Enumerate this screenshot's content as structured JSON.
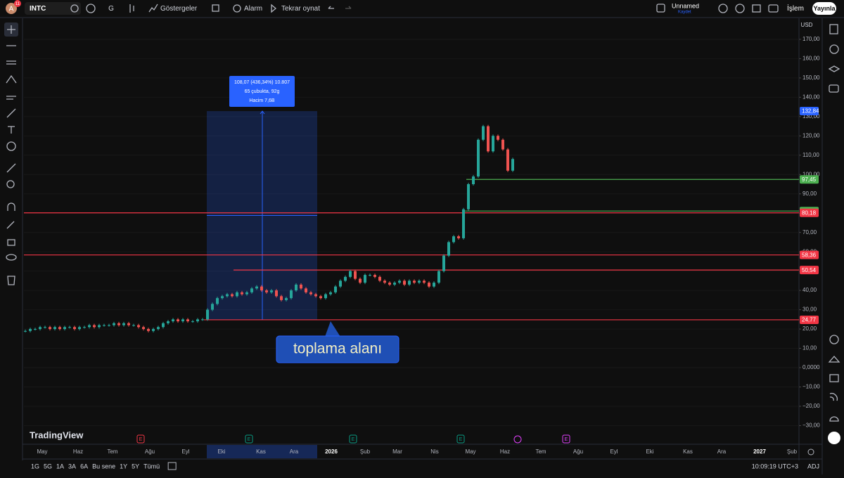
{
  "toolbar": {
    "avatar": "A",
    "notifications": "11",
    "symbol": "INTC",
    "interval": "G",
    "indicators": "Göstergeler",
    "alert": "Alarm",
    "replay": "Tekrar oynat",
    "layout_name": "Unnamed",
    "save_status": "Kaydet",
    "trade": "İşlem",
    "publish": "Yayınla"
  },
  "chart_data": {
    "type": "candlestick",
    "currency": "USD",
    "watermark": "TradingView",
    "ylim": [
      -35.3,
      180.9
    ],
    "yticks": [
      {
        "value": 170,
        "label": "170,00"
      },
      {
        "value": 160,
        "label": "160,00"
      },
      {
        "value": 150,
        "label": "150,00"
      },
      {
        "value": 140,
        "label": "140,00"
      },
      {
        "value": 130,
        "label": "130,00"
      },
      {
        "value": 120,
        "label": "120,00"
      },
      {
        "value": 110,
        "label": "110,00"
      },
      {
        "value": 100,
        "label": "100,00"
      },
      {
        "value": 90,
        "label": "90,00"
      },
      {
        "value": 80,
        "label": "80,00"
      },
      {
        "value": 70,
        "label": "70,00"
      },
      {
        "value": 60,
        "label": "60,00"
      },
      {
        "value": 50,
        "label": "50,00"
      },
      {
        "value": 40,
        "label": "40,00"
      },
      {
        "value": 30,
        "label": "30,00"
      },
      {
        "value": 20,
        "label": "20,00"
      },
      {
        "value": 10,
        "label": "10,00"
      },
      {
        "value": 0,
        "label": "0,0000"
      },
      {
        "value": -10,
        "label": "−10,00"
      },
      {
        "value": -20,
        "label": "−20,00"
      },
      {
        "value": -30,
        "label": "−30,00"
      }
    ],
    "grid": true,
    "up_color": "#26a69a",
    "down_color": "#ef5350",
    "series": [
      {
        "values": [
          19,
          20,
          20,
          21,
          21,
          20,
          21,
          20,
          21,
          21,
          20,
          21,
          21,
          22,
          21,
          22,
          22,
          22,
          23,
          22,
          23,
          22,
          22,
          21,
          20,
          19,
          20,
          21,
          23,
          24,
          25,
          24,
          25,
          24,
          24,
          25,
          25,
          30,
          33,
          36,
          37,
          38,
          37,
          39,
          38,
          39,
          41,
          42,
          40,
          39,
          40,
          37,
          35,
          36,
          40,
          43,
          41,
          39,
          38,
          37,
          36,
          38,
          39,
          42,
          45,
          47,
          50,
          46,
          44,
          48,
          48,
          47,
          45,
          44,
          43,
          44,
          45,
          43,
          45,
          44,
          45,
          44,
          42,
          44,
          50,
          58,
          65,
          68,
          67,
          82,
          95,
          99,
          118,
          125,
          112,
          120,
          118,
          113,
          102,
          108
        ]
      }
    ],
    "price_lines": [
      {
        "value": 132.84,
        "label": "132,84",
        "color": "#2962ff"
      },
      {
        "value": 97.45,
        "label": "97,45",
        "color": "#4caf50"
      },
      {
        "value": 81.1,
        "label": "81,10",
        "color": "#4caf50"
      },
      {
        "value": 80.18,
        "label": "80,18",
        "color": "#f23645"
      },
      {
        "value": 58.36,
        "label": "58,36",
        "color": "#f23645"
      },
      {
        "value": 50.54,
        "label": "50,54",
        "color": "#f23645"
      },
      {
        "value": 24.77,
        "label": "24,77",
        "color": "#f23645"
      }
    ],
    "measure": {
      "from": 24.77,
      "to": 132.84,
      "tooltip": [
        "108,07 (436,34%) 10.807",
        "65 çubukta, 92g",
        "Hacim 7,6B"
      ]
    },
    "annotation": "toplama alanı",
    "x_labels": [
      "May",
      "Haz",
      "Tem",
      "Ağu",
      "Eyl",
      "Eki",
      "Kas",
      "Ara",
      "2026",
      "Şub",
      "Mar",
      "Nis",
      "May",
      "Haz",
      "Tem",
      "Ağu",
      "Eyl",
      "Eki",
      "Kas",
      "Ara",
      "2027",
      "Şub"
    ],
    "events": [
      {
        "label": "E",
        "color": "#f23645"
      },
      {
        "label": "E",
        "color": "#089981"
      },
      {
        "label": "E",
        "color": "#089981"
      },
      {
        "label": "E",
        "color": "#089981"
      },
      {
        "label": "E",
        "color": "#e040fb"
      }
    ]
  },
  "bottom_bar": {
    "ranges": [
      "1G",
      "5G",
      "1A",
      "3A",
      "6A",
      "Bu sene",
      "1Y",
      "5Y",
      "Tümü"
    ],
    "clock": "10:09:19 UTC+3",
    "adj": "ADJ"
  }
}
